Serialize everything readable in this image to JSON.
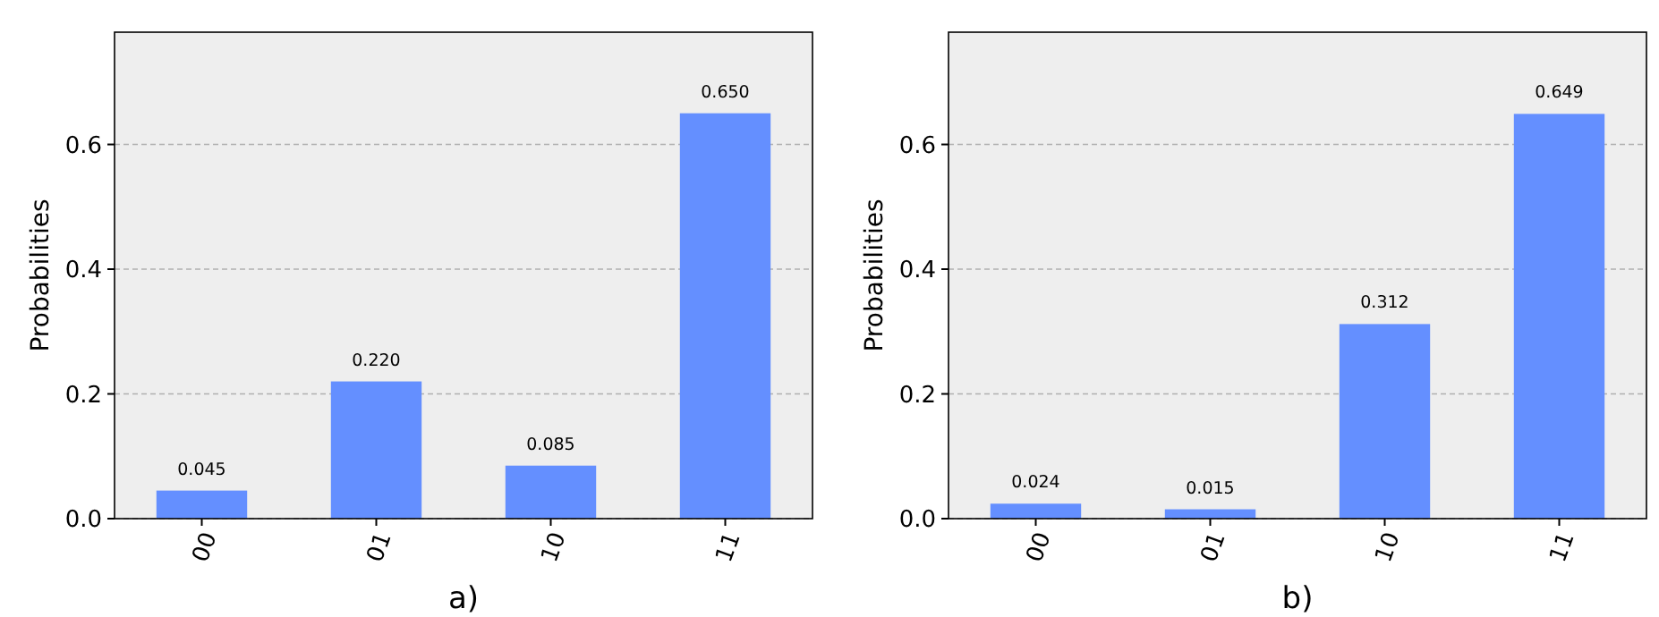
{
  "chart_data": [
    {
      "type": "bar",
      "categories": [
        "00",
        "01",
        "10",
        "11"
      ],
      "values": [
        0.045,
        0.22,
        0.085,
        0.65
      ],
      "color": "#648fff",
      "ylim": [
        0,
        0.78
      ],
      "yticks": [
        {
          "value": 0,
          "label": "0.0"
        },
        {
          "value": 0.2,
          "label": "0.2"
        },
        {
          "value": 0.4,
          "label": "0.4"
        },
        {
          "value": 0.6,
          "label": "0.6"
        }
      ],
      "ylabel": "Probabilities",
      "xlabel": "a)",
      "grid": "y",
      "data_labels": true,
      "value_labels": [
        "0.045",
        "0.220",
        "0.085",
        "0.650"
      ]
    },
    {
      "type": "bar",
      "categories": [
        "00",
        "01",
        "10",
        "11"
      ],
      "values": [
        0.024,
        0.015,
        0.312,
        0.649
      ],
      "color": "#648fff",
      "ylim": [
        0,
        0.78
      ],
      "yticks": [
        {
          "value": 0,
          "label": "0.0"
        },
        {
          "value": 0.2,
          "label": "0.2"
        },
        {
          "value": 0.4,
          "label": "0.4"
        },
        {
          "value": 0.6,
          "label": "0.6"
        }
      ],
      "ylabel": "Probabilities",
      "xlabel": "b)",
      "grid": "y",
      "data_labels": true,
      "value_labels": [
        "0.024",
        "0.015",
        "0.312",
        "0.649"
      ]
    }
  ]
}
